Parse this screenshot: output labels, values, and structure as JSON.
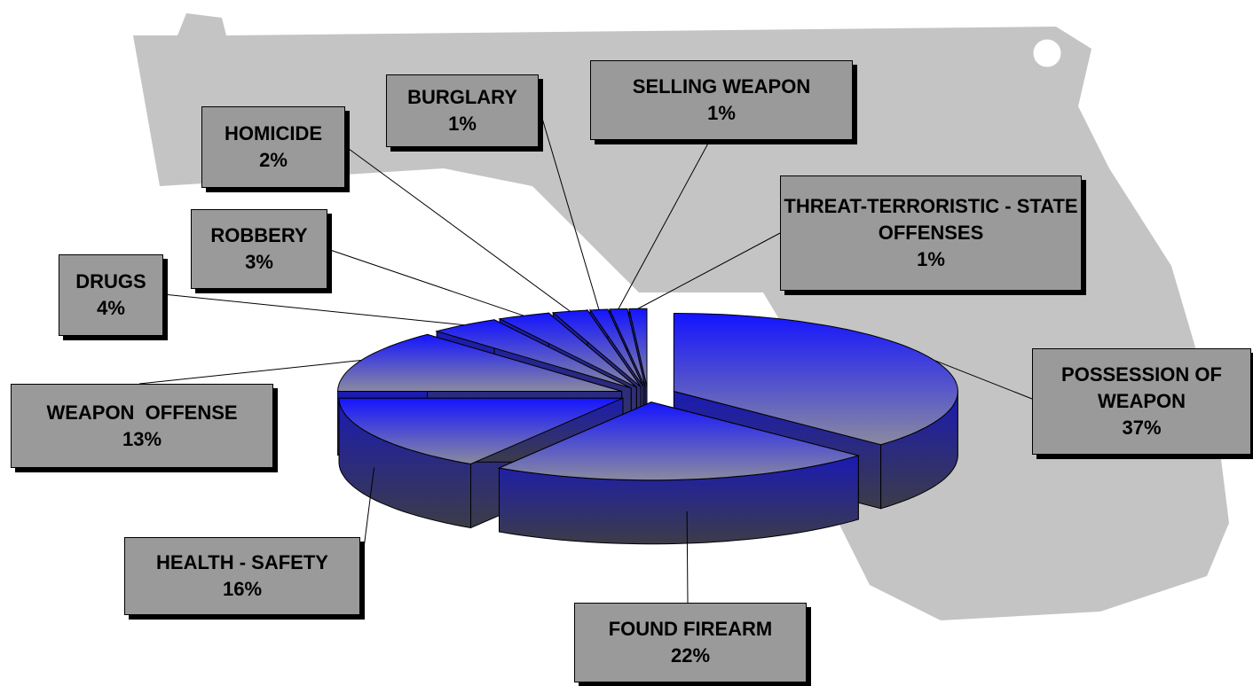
{
  "chart_data": {
    "type": "pie",
    "categories": [
      "POSSESSION OF WEAPON",
      "FOUND FIREARM",
      "HEALTH - SAFETY",
      "WEAPON  OFFENSE",
      "DRUGS",
      "ROBBERY",
      "HOMICIDE",
      "BURGLARY",
      "SELLING WEAPON",
      "THREAT-TERRORISTIC - STATE OFFENSES"
    ],
    "values": [
      37,
      22,
      16,
      13,
      4,
      3,
      2,
      1,
      1,
      1
    ],
    "value_labels": [
      "37%",
      "22%",
      "16%",
      "13%",
      "4%",
      "3%",
      "2%",
      "1%",
      "1%",
      "1%"
    ]
  }
}
